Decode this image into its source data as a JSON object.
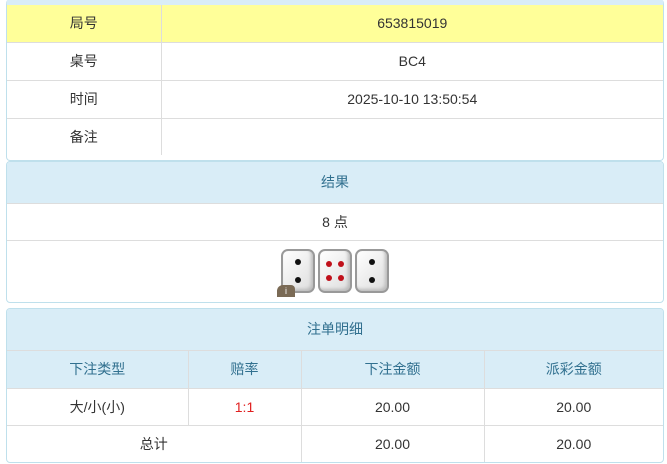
{
  "info": {
    "rows": [
      {
        "label": "局号",
        "value": "653815019"
      },
      {
        "label": "桌号",
        "value": "BC4"
      },
      {
        "label": "时间",
        "value": "2025-10-10 13:50:54"
      },
      {
        "label": "备注",
        "value": ""
      }
    ]
  },
  "result": {
    "title": "结果",
    "points": "8 点",
    "dice": [
      2,
      4,
      2
    ],
    "info_badge": "i"
  },
  "bets": {
    "title": "注单明细",
    "headers": [
      "下注类型",
      "赔率",
      "下注金额",
      "派彩金额"
    ],
    "rows": [
      {
        "type": "大/小(小)",
        "odds": "1:1",
        "amount": "20.00",
        "payout": "20.00"
      }
    ],
    "total": {
      "label": "总计",
      "amount": "20.00",
      "payout": "20.00"
    }
  },
  "colors": {
    "header_bg": "#d9edf7",
    "header_text": "#31708f",
    "highlight": "#ffff99",
    "odds": "#e02020"
  }
}
